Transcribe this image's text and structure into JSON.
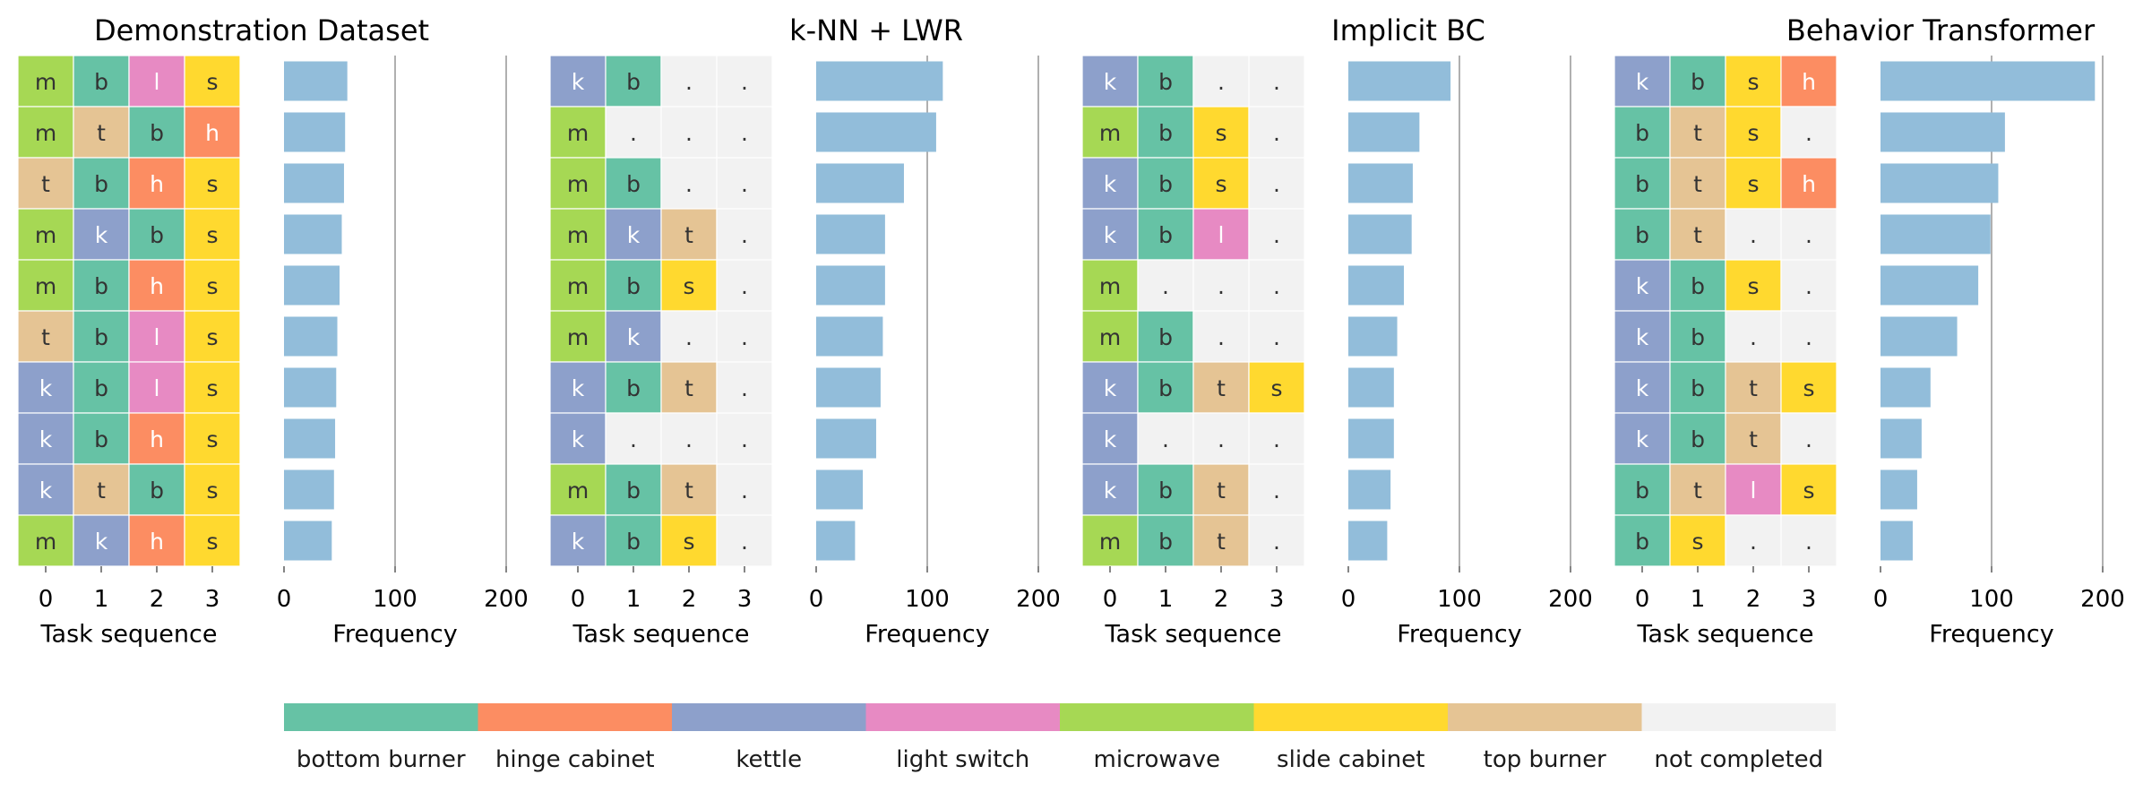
{
  "xticks_seq": [
    0,
    1,
    2,
    3
  ],
  "xticks_freq": [
    0,
    100,
    200
  ],
  "xlabel_seq": "Task sequence",
  "xlabel_freq": "Frequency",
  "legend": [
    {
      "key": "b",
      "label": "bottom burner",
      "color": "#66c2a5"
    },
    {
      "key": "h",
      "label": "hinge cabinet",
      "color": "#fc8d62"
    },
    {
      "key": "k",
      "label": "kettle",
      "color": "#8da0cb"
    },
    {
      "key": "l",
      "label": "light switch",
      "color": "#e78ac3"
    },
    {
      "key": "m",
      "label": "microwave",
      "color": "#a6d854"
    },
    {
      "key": "s",
      "label": "slide cabinet",
      "color": "#ffd92f"
    },
    {
      "key": "t",
      "label": "top burner",
      "color": "#e5c494"
    },
    {
      "key": ".",
      "label": "not completed",
      "color": "#f2f2f2"
    }
  ],
  "chart_data": [
    {
      "type": "heatmap+bar",
      "title": "Demonstration Dataset",
      "xlim": [
        0,
        200
      ],
      "sequences": [
        [
          "m",
          "b",
          "l",
          "s"
        ],
        [
          "m",
          "t",
          "b",
          "h"
        ],
        [
          "t",
          "b",
          "h",
          "s"
        ],
        [
          "m",
          "k",
          "b",
          "s"
        ],
        [
          "m",
          "b",
          "h",
          "s"
        ],
        [
          "t",
          "b",
          "l",
          "s"
        ],
        [
          "k",
          "b",
          "l",
          "s"
        ],
        [
          "k",
          "b",
          "h",
          "s"
        ],
        [
          "k",
          "t",
          "b",
          "s"
        ],
        [
          "m",
          "k",
          "h",
          "s"
        ]
      ],
      "frequency": [
        57,
        55,
        54,
        52,
        50,
        48,
        47,
        46,
        45,
        43
      ]
    },
    {
      "type": "heatmap+bar",
      "title": "k-NN + LWR",
      "xlim": [
        0,
        200
      ],
      "sequences": [
        [
          "k",
          "b",
          ".",
          "."
        ],
        [
          "m",
          ".",
          ".",
          "."
        ],
        [
          "m",
          "b",
          ".",
          "."
        ],
        [
          "m",
          "k",
          "t",
          "."
        ],
        [
          "m",
          "b",
          "s",
          "."
        ],
        [
          "m",
          "k",
          ".",
          "."
        ],
        [
          "k",
          "b",
          "t",
          "."
        ],
        [
          "k",
          ".",
          ".",
          "."
        ],
        [
          "m",
          "b",
          "t",
          "."
        ],
        [
          "k",
          "b",
          "s",
          "."
        ]
      ],
      "frequency": [
        114,
        108,
        79,
        62,
        62,
        60,
        58,
        54,
        42,
        35
      ]
    },
    {
      "type": "heatmap+bar",
      "title": "Implicit BC",
      "xlim": [
        0,
        200
      ],
      "sequences": [
        [
          "k",
          "b",
          ".",
          "."
        ],
        [
          "m",
          "b",
          "s",
          "."
        ],
        [
          "k",
          "b",
          "s",
          "."
        ],
        [
          "k",
          "b",
          "l",
          "."
        ],
        [
          "m",
          ".",
          ".",
          "."
        ],
        [
          "m",
          "b",
          ".",
          "."
        ],
        [
          "k",
          "b",
          "t",
          "s"
        ],
        [
          "k",
          ".",
          ".",
          "."
        ],
        [
          "k",
          "b",
          "t",
          "."
        ],
        [
          "m",
          "b",
          "t",
          "."
        ]
      ],
      "frequency": [
        92,
        64,
        58,
        57,
        50,
        44,
        41,
        41,
        38,
        35
      ]
    },
    {
      "type": "heatmap+bar",
      "title": "Behavior Transformer",
      "xlim": [
        0,
        200
      ],
      "sequences": [
        [
          "k",
          "b",
          "s",
          "h"
        ],
        [
          "b",
          "t",
          "s",
          "."
        ],
        [
          "b",
          "t",
          "s",
          "h"
        ],
        [
          "b",
          "t",
          ".",
          "."
        ],
        [
          "k",
          "b",
          "s",
          "."
        ],
        [
          "k",
          "b",
          ".",
          "."
        ],
        [
          "k",
          "b",
          "t",
          "s"
        ],
        [
          "k",
          "b",
          "t",
          "."
        ],
        [
          "b",
          "t",
          "l",
          "s"
        ],
        [
          "b",
          "s",
          ".",
          "."
        ]
      ],
      "frequency": [
        193,
        112,
        106,
        99,
        88,
        69,
        45,
        37,
        33,
        29
      ]
    }
  ]
}
